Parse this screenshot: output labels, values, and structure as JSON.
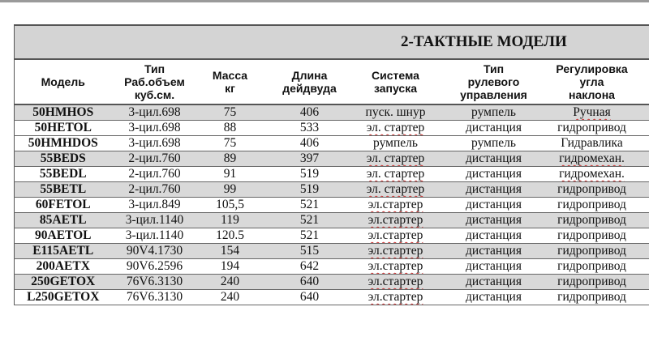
{
  "title": "2-ТАКТНЫЕ МОДЕЛИ",
  "columns": [
    "Модель",
    "Тип\nРаб.объем\nкуб.см.",
    "Масса\nкг",
    "Длина\nдейдвуда",
    "Система\nзапуска",
    "Тип\nрулевого\nуправления",
    "Регулировка\nугла\nнаклона",
    ""
  ],
  "rows": [
    {
      "model": "50HMHOS",
      "type": "3-цил.698",
      "mass": "75",
      "length": "406",
      "start": "пуск. шнур",
      "steering": "румпель",
      "tilt": "Ручная",
      "shade": "gray"
    },
    {
      "model": "50HETOL",
      "type": "3-цил.698",
      "mass": "88",
      "length": "533",
      "start": "эл. стартер",
      "steering": "дистанция",
      "tilt": "гидропривод",
      "shade": "white"
    },
    {
      "model": "50HMHDOS",
      "type": "3-цил.698",
      "mass": "75",
      "length": "406",
      "start": "румпель",
      "steering": "румпель",
      "tilt": "Гидравлика",
      "shade": "white"
    },
    {
      "model": "55BEDS",
      "type": "2-цил.760",
      "mass": "89",
      "length": "397",
      "start": "эл. стартер",
      "steering": "дистанция",
      "tilt": "гидромехан.",
      "shade": "gray"
    },
    {
      "model": "55BEDL",
      "type": "2-цил.760",
      "mass": "91",
      "length": "519",
      "start": "эл. стартер",
      "steering": "дистанция",
      "tilt": "гидромехан.",
      "shade": "white"
    },
    {
      "model": "55BETL",
      "type": "2-цил.760",
      "mass": "99",
      "length": "519",
      "start": "эл. стартер",
      "steering": "дистанция",
      "tilt": "гидропривод",
      "shade": "gray"
    },
    {
      "model": "60FETOL",
      "type": "3-цил.849",
      "mass": "105,5",
      "length": "521",
      "start": "эл.стартер",
      "steering": "дистанция",
      "tilt": "гидропривод",
      "shade": "white"
    },
    {
      "model": "85AETL",
      "type": "3-цил.1140",
      "mass": "119",
      "length": "521",
      "start": "эл.стартер",
      "steering": "дистанция",
      "tilt": "гидропривод",
      "shade": "gray"
    },
    {
      "model": "90AETOL",
      "type": "3-цил.1140",
      "mass": "120.5",
      "length": "521",
      "start": "эл.стартер",
      "steering": "дистанция",
      "tilt": "гидропривод",
      "shade": "white"
    },
    {
      "model": "E115AETL",
      "type": "90V4.1730",
      "mass": "154",
      "length": "515",
      "start": "эл.стартер",
      "steering": "дистанция",
      "tilt": "гидропривод",
      "shade": "gray"
    },
    {
      "model": "200AETX",
      "type": "90V6.2596",
      "mass": "194",
      "length": "642",
      "start": "эл.стартер",
      "steering": "дистанция",
      "tilt": "гидропривод",
      "shade": "white"
    },
    {
      "model": "250GETOX",
      "type": "76V6.3130",
      "mass": "240",
      "length": "640",
      "start": "эл.стартер",
      "steering": "дистанция",
      "tilt": "гидропривод",
      "shade": "gray"
    },
    {
      "model": "L250GETOX",
      "type": "76V6.3130",
      "mass": "240",
      "length": "640",
      "start": "эл.стартер",
      "steering": "дистанция",
      "tilt": "гидропривод",
      "shade": "white"
    }
  ]
}
